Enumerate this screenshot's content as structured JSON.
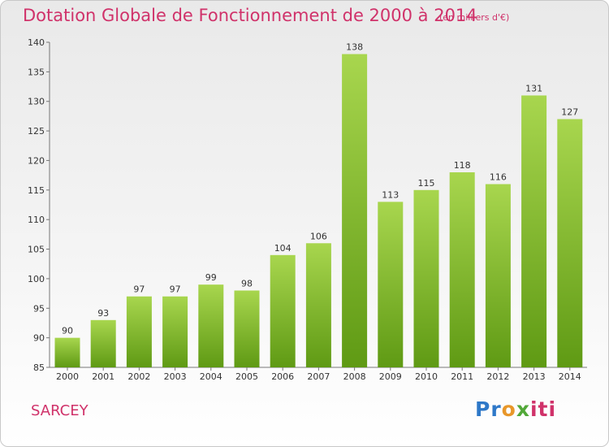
{
  "header": {
    "title": "Dotation Globale de Fonctionnement de 2000 à 2014",
    "subtitle": "(en milliers d'€)"
  },
  "footer": {
    "commune": "SARCEY",
    "logo_text": "Proxiti"
  },
  "colors": {
    "title": "#d0326a",
    "bar_light": "#a8d64e",
    "bar_dark": "#5f9a14",
    "logo": [
      "#2e78c8",
      "#e8972a",
      "#52a839",
      "#d0326a"
    ]
  },
  "chart_data": {
    "type": "bar",
    "title": "Dotation Globale de Fonctionnement de 2000 à 2014",
    "subtitle": "(en milliers d'€)",
    "categories": [
      "2000",
      "2001",
      "2002",
      "2003",
      "2004",
      "2005",
      "2006",
      "2007",
      "2008",
      "2009",
      "2010",
      "2011",
      "2012",
      "2013",
      "2014"
    ],
    "values": [
      90,
      93,
      97,
      97,
      99,
      98,
      104,
      106,
      138,
      113,
      115,
      118,
      116,
      131,
      127
    ],
    "ylim": [
      85,
      140
    ],
    "yticks": [
      85,
      90,
      95,
      100,
      105,
      110,
      115,
      120,
      125,
      130,
      135,
      140
    ],
    "xlabel": "",
    "ylabel": "",
    "grid": false,
    "data_labels": true
  }
}
